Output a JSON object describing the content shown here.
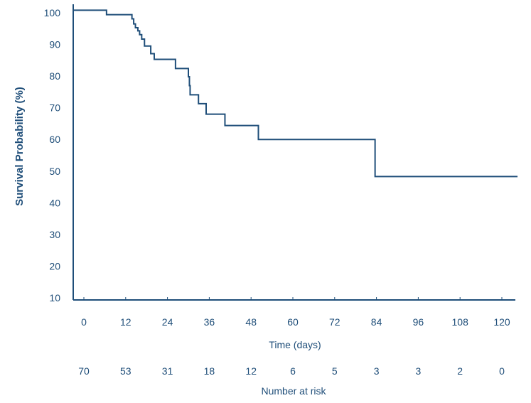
{
  "chart_data": {
    "type": "line",
    "title": "",
    "xlabel": "Time (days)",
    "ylabel": "Survival Probability (%)",
    "xlim": [
      0,
      120
    ],
    "ylim": [
      10,
      100
    ],
    "x_ticks": [
      "0",
      "12",
      "24",
      "36",
      "48",
      "60",
      "72",
      "84",
      "96",
      "108",
      "120"
    ],
    "y_ticks": [
      "100",
      "90",
      "80",
      "70",
      "60",
      "50",
      "40",
      "30",
      "20",
      "10"
    ],
    "grid": false,
    "step": true,
    "series": [
      {
        "x": [
          0,
          6.5,
          13.8,
          14.3,
          14.8,
          15.5,
          16,
          16.6,
          17.4,
          19.2,
          20.2,
          26.3,
          30,
          30.3,
          30.5,
          30.9,
          32.9,
          35.1,
          40.5,
          50.1,
          83.6,
          124.5
        ],
        "y": [
          100.8,
          99.4,
          98.1,
          96.5,
          95.3,
          94.3,
          93.1,
          91.7,
          89.5,
          87.1,
          85.3,
          82.4,
          79.8,
          77.0,
          74.1,
          74.1,
          71.3,
          68.0,
          64.4,
          60.0,
          48.3,
          48.3
        ]
      }
    ],
    "risk_table": {
      "label": "Number at risk",
      "values": [
        "70",
        "53",
        "31",
        "18",
        "12",
        "6",
        "5",
        "3",
        "3",
        "2",
        "0"
      ]
    },
    "colors": {
      "line": "#1f4e79",
      "axis": "#1f4e79",
      "text": "#1f4e79"
    }
  }
}
